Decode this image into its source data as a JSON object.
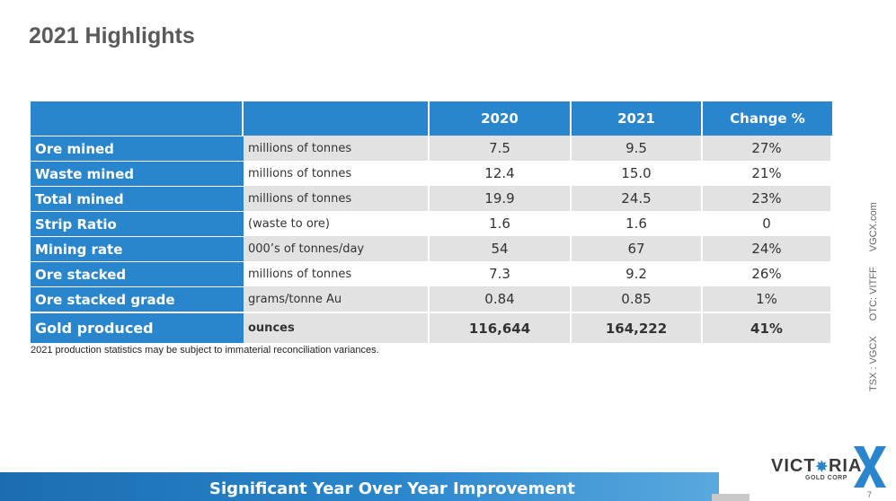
{
  "title": "2021 Highlights",
  "table": {
    "headers": [
      "",
      "",
      "2020",
      "2021",
      "Change %"
    ],
    "rows": [
      {
        "label": "Ore mined",
        "unit": "millions of tonnes",
        "y2020": "7.5",
        "y2021": "9.5",
        "change": "27%"
      },
      {
        "label": "Waste mined",
        "unit": "millions of tonnes",
        "y2020": "12.4",
        "y2021": "15.0",
        "change": "21%"
      },
      {
        "label": "Total mined",
        "unit": "millions of tonnes",
        "y2020": "19.9",
        "y2021": "24.5",
        "change": "23%"
      },
      {
        "label": "Strip Ratio",
        "unit": "(waste to ore)",
        "y2020": "1.6",
        "y2021": "1.6",
        "change": "0"
      },
      {
        "label": "Mining rate",
        "unit": "000’s of tonnes/day",
        "y2020": "54",
        "y2021": "67",
        "change": "24%"
      },
      {
        "label": "Ore stacked",
        "unit": "millions of tonnes",
        "y2020": "7.3",
        "y2021": "9.2",
        "change": "26%"
      },
      {
        "label": "Ore stacked grade",
        "unit": "grams/tonne Au",
        "y2020": "0.84",
        "y2021": "0.85",
        "change": "1%"
      },
      {
        "label": "Gold produced",
        "unit": "ounces",
        "y2020": "116,644",
        "y2021": "164,222",
        "change": "41%"
      }
    ]
  },
  "footnote": "2021 production statistics may be subject to immaterial reconciliation variances.",
  "sidebar": {
    "tsx": "TSX : VGCX",
    "otc": "OTC: VITFF",
    "web": "VGCX.com"
  },
  "banner": "Significant Year Over Year Improvement",
  "logo": {
    "word_pre": "VICT",
    "word_post": "RIA",
    "sub": "GOLD CORP",
    "x_color": "#2a86cc"
  },
  "page_number": "7",
  "colors": {
    "accent": "#2a86cc",
    "shade": "#e2e2e2",
    "title": "#5a5a5a"
  }
}
